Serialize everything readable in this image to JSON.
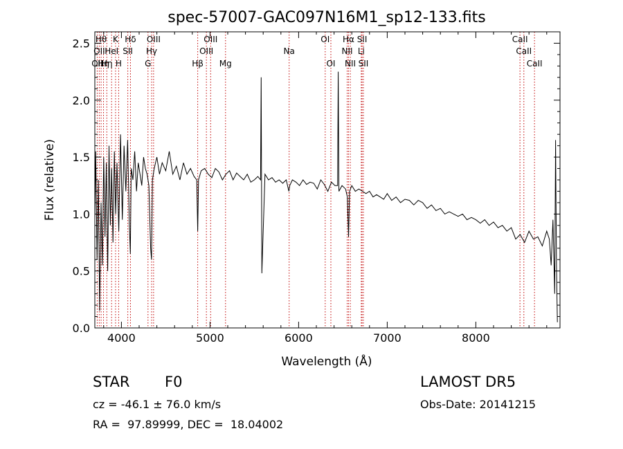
{
  "chart_data": {
    "type": "line",
    "title": "spec-57007-GAC097N16M1_sp12-133.fits",
    "xlabel": "Wavelength (Å)",
    "ylabel": "Flux (relative)",
    "xlim": [
      3700,
      8950
    ],
    "ylim": [
      0.0,
      2.6
    ],
    "xticks": [
      4000,
      5000,
      6000,
      7000,
      8000
    ],
    "yticks": [
      "0.0",
      "0.5",
      "1.0",
      "1.5",
      "2.0",
      "2.5"
    ],
    "grid": false,
    "series": [
      {
        "x": [
          3700,
          3710,
          3725,
          3740,
          3755,
          3770,
          3785,
          3800,
          3815,
          3830,
          3845,
          3860,
          3875,
          3890,
          3905,
          3920,
          3935,
          3950,
          3970,
          3990,
          4010,
          4030,
          4050,
          4070,
          4090,
          4101,
          4110,
          4130,
          4150,
          4170,
          4190,
          4210,
          4230,
          4250,
          4270,
          4290,
          4310,
          4330,
          4340,
          4350,
          4370,
          4400,
          4430,
          4460,
          4500,
          4540,
          4580,
          4620,
          4660,
          4700,
          4740,
          4780,
          4820,
          4850,
          4861,
          4870,
          4900,
          4940,
          4980,
          5020,
          5060,
          5100,
          5140,
          5180,
          5220,
          5260,
          5300,
          5340,
          5380,
          5420,
          5460,
          5500,
          5540,
          5570,
          5577,
          5585,
          5620,
          5660,
          5700,
          5740,
          5780,
          5820,
          5860,
          5890,
          5900,
          5930,
          5970,
          6010,
          6050,
          6090,
          6130,
          6170,
          6210,
          6250,
          6290,
          6330,
          6370,
          6410,
          6440,
          6447,
          6455,
          6490,
          6530,
          6550,
          6563,
          6575,
          6600,
          6640,
          6680,
          6720,
          6760,
          6800,
          6840,
          6880,
          6920,
          6960,
          7000,
          7050,
          7100,
          7150,
          7200,
          7250,
          7300,
          7350,
          7400,
          7450,
          7500,
          7550,
          7600,
          7650,
          7700,
          7750,
          7800,
          7850,
          7900,
          7950,
          8000,
          8050,
          8100,
          8150,
          8200,
          8250,
          8300,
          8350,
          8400,
          8450,
          8500,
          8550,
          8600,
          8650,
          8700,
          8750,
          8800,
          8830,
          8850,
          8870,
          8890,
          8900,
          8910,
          8920
        ],
        "y": [
          0.95,
          1.55,
          0.6,
          1.3,
          0.15,
          1.1,
          0.55,
          1.5,
          0.8,
          1.45,
          0.5,
          1.6,
          0.9,
          1.4,
          0.75,
          1.55,
          1.0,
          1.45,
          0.85,
          1.7,
          0.95,
          1.6,
          1.2,
          1.65,
          0.9,
          0.65,
          1.4,
          1.3,
          1.55,
          1.2,
          1.45,
          1.35,
          1.25,
          1.5,
          1.4,
          1.35,
          1.25,
          0.7,
          0.6,
          1.3,
          1.4,
          1.5,
          1.35,
          1.45,
          1.38,
          1.55,
          1.35,
          1.42,
          1.3,
          1.45,
          1.35,
          1.4,
          1.33,
          1.3,
          0.85,
          1.3,
          1.38,
          1.4,
          1.35,
          1.32,
          1.4,
          1.37,
          1.3,
          1.35,
          1.38,
          1.3,
          1.36,
          1.33,
          1.3,
          1.35,
          1.28,
          1.3,
          1.33,
          1.3,
          2.2,
          0.48,
          1.35,
          1.3,
          1.32,
          1.28,
          1.3,
          1.27,
          1.3,
          1.2,
          1.25,
          1.3,
          1.28,
          1.25,
          1.3,
          1.26,
          1.28,
          1.27,
          1.22,
          1.3,
          1.26,
          1.2,
          1.28,
          1.25,
          1.25,
          2.25,
          1.2,
          1.25,
          1.22,
          1.15,
          0.8,
          1.2,
          1.25,
          1.2,
          1.22,
          1.2,
          1.18,
          1.2,
          1.15,
          1.17,
          1.15,
          1.13,
          1.18,
          1.12,
          1.15,
          1.1,
          1.13,
          1.12,
          1.08,
          1.12,
          1.1,
          1.05,
          1.08,
          1.03,
          1.05,
          1.0,
          1.02,
          1.0,
          0.98,
          1.0,
          0.95,
          0.97,
          0.95,
          0.92,
          0.95,
          0.9,
          0.93,
          0.88,
          0.9,
          0.85,
          0.88,
          0.78,
          0.82,
          0.75,
          0.85,
          0.78,
          0.8,
          0.72,
          0.85,
          0.78,
          0.55,
          0.95,
          0.3,
          1.65,
          0.55,
          0.05
        ]
      }
    ],
    "lines": [
      {
        "wl": 3727,
        "label": "OII",
        "row": 2
      },
      {
        "wl": 3750,
        "label": "OII",
        "row": 1
      },
      {
        "wl": 3771,
        "label": "Hθ",
        "row": 0
      },
      {
        "wl": 3798,
        "label": "Hη",
        "row": 2
      },
      {
        "wl": 3835,
        "label": "Hη",
        "row": 2
      },
      {
        "wl": 3889,
        "label": "HeI",
        "row": 1
      },
      {
        "wl": 3934,
        "label": "K",
        "row": 0
      },
      {
        "wl": 3969,
        "label": "H",
        "row": 2
      },
      {
        "wl": 4072,
        "label": "SII",
        "row": 1
      },
      {
        "wl": 4102,
        "label": "Hδ",
        "row": 0
      },
      {
        "wl": 4300,
        "label": "G",
        "row": 2
      },
      {
        "wl": 4341,
        "label": "Hγ",
        "row": 1
      },
      {
        "wl": 4363,
        "label": "OIII",
        "row": 0
      },
      {
        "wl": 4861,
        "label": "Hβ",
        "row": 2
      },
      {
        "wl": 4959,
        "label": "OIII",
        "row": 1
      },
      {
        "wl": 5007,
        "label": "OIII",
        "row": 0
      },
      {
        "wl": 5175,
        "label": "Mg",
        "row": 2
      },
      {
        "wl": 5893,
        "label": "Na",
        "row": 1
      },
      {
        "wl": 6300,
        "label": "OI",
        "row": 0
      },
      {
        "wl": 6364,
        "label": "OI",
        "row": 2
      },
      {
        "wl": 6548,
        "label": "NII",
        "row": 1
      },
      {
        "wl": 6563,
        "label": "Hα",
        "row": 0
      },
      {
        "wl": 6583,
        "label": "NII",
        "row": 2
      },
      {
        "wl": 6707,
        "label": "Li",
        "row": 1
      },
      {
        "wl": 6716,
        "label": "SII",
        "row": 0
      },
      {
        "wl": 6731,
        "label": "SII",
        "row": 2
      },
      {
        "wl": 8498,
        "label": "CaII",
        "row": 0
      },
      {
        "wl": 8542,
        "label": "CaII",
        "row": 1
      },
      {
        "wl": 8662,
        "label": "CaII",
        "row": 2
      }
    ]
  },
  "info": {
    "class_label": "STAR",
    "subclass_label": "F0",
    "survey": "LAMOST DR5",
    "cz": "cz = -46.1 ± 76.0 km/s",
    "obs_date": "Obs-Date: 20141215",
    "coords": "RA =  97.89999, DEC =  18.04002"
  }
}
